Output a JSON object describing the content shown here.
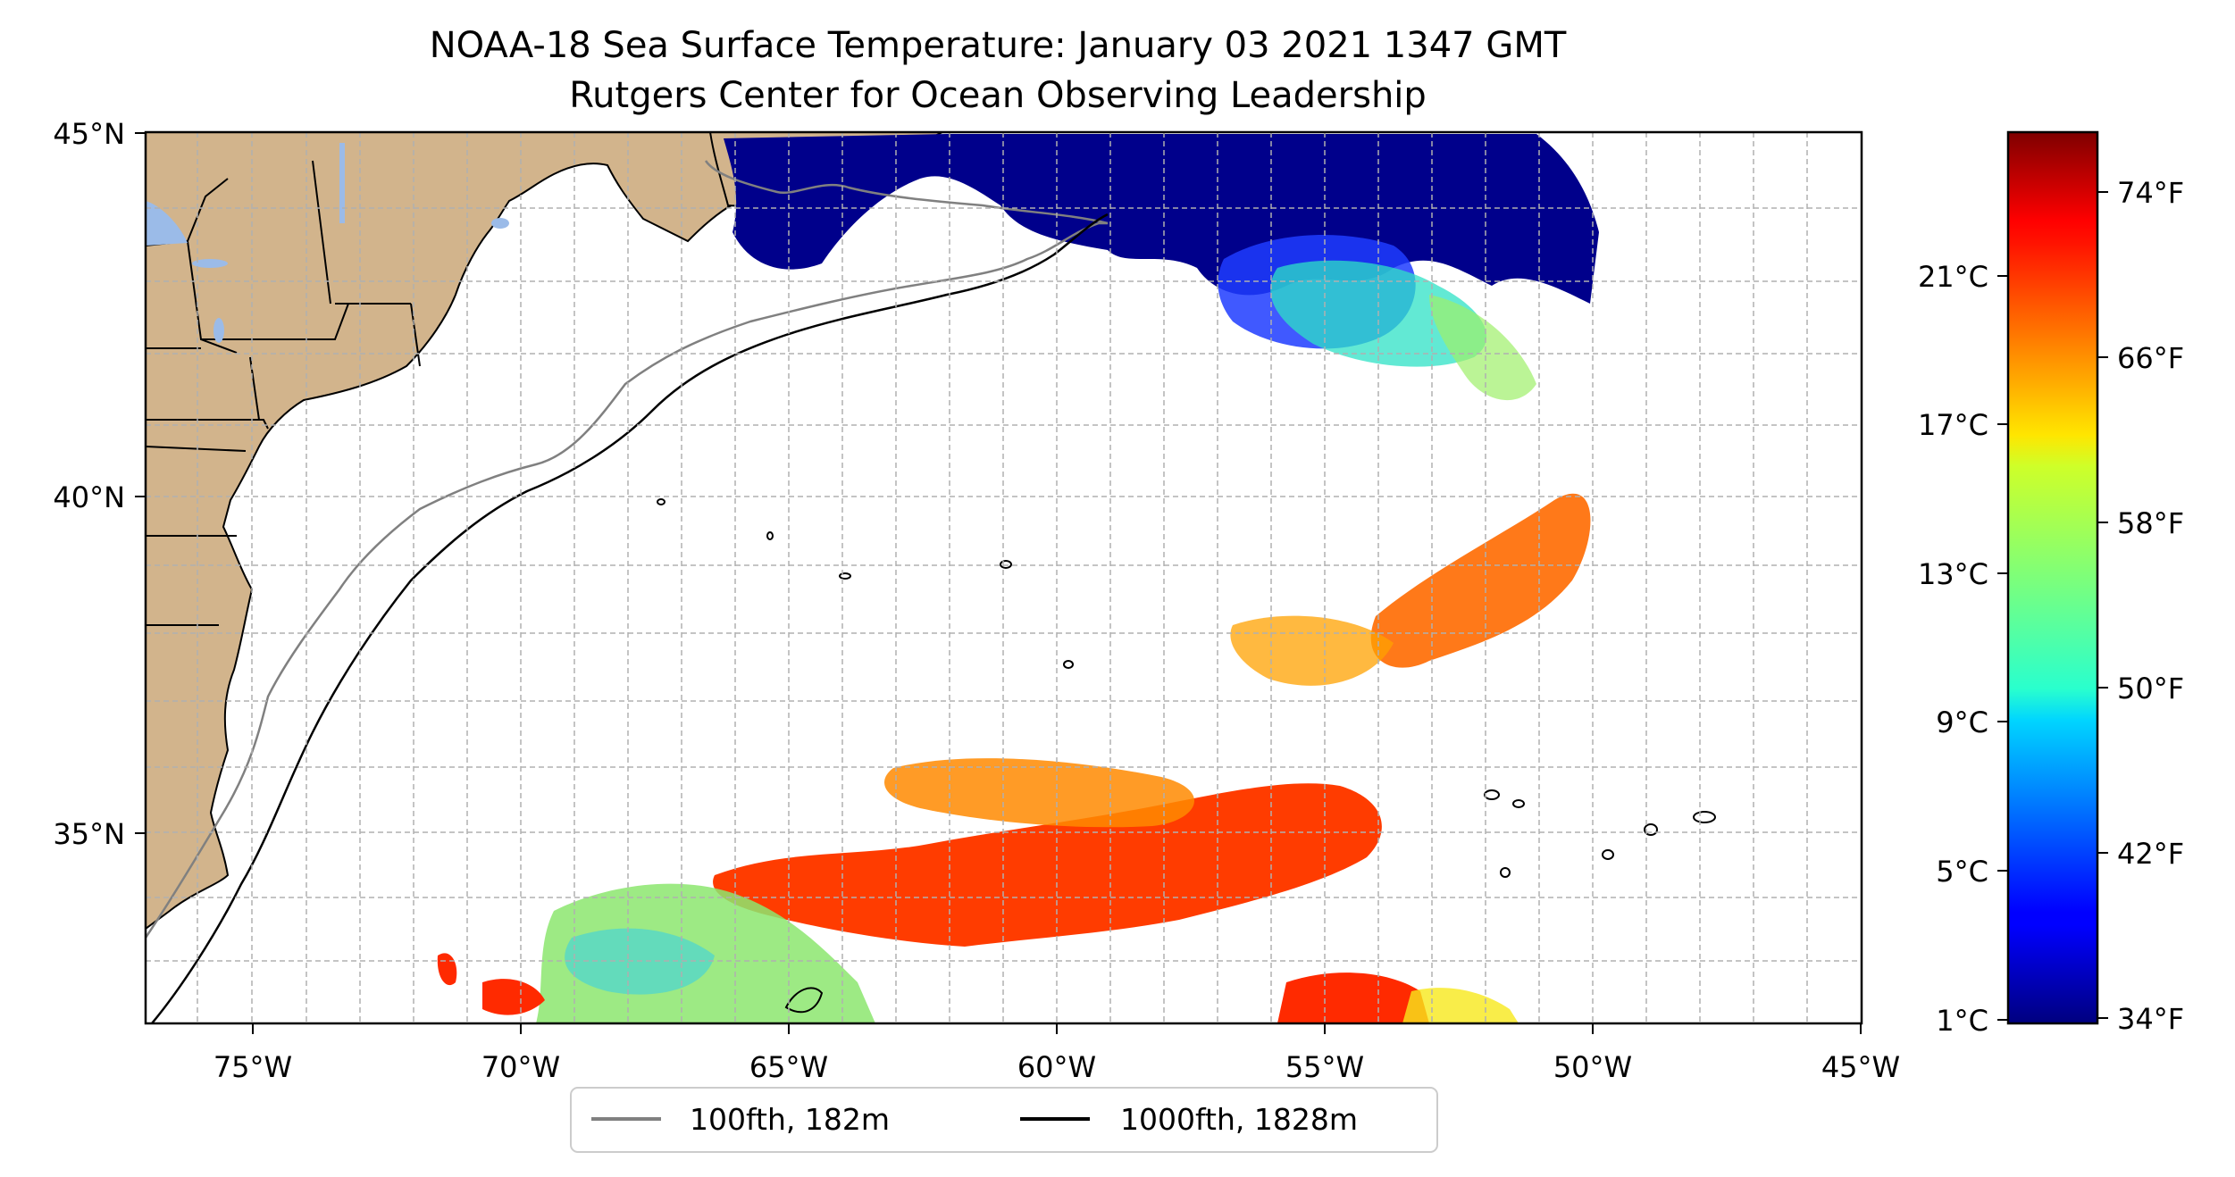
{
  "title": {
    "line1": "NOAA-18 Sea Surface Temperature: January 03 2021 1347 GMT",
    "line2": "Rutgers Center for Ocean Observing Leadership"
  },
  "map": {
    "extent": {
      "lon_min": -77,
      "lon_max": -45,
      "lat_min": 32.5,
      "lat_max": 45
    },
    "projection": "Mercator",
    "gridlines": true,
    "x_ticks": [
      "75°W",
      "70°W",
      "65°W",
      "60°W",
      "55°W",
      "50°W",
      "45°W"
    ],
    "y_ticks": [
      "35°N",
      "40°N",
      "45°N"
    ],
    "land_color": "#d2b48c",
    "lake_color": "#9bbbe8",
    "ocean_color": "#ffffff"
  },
  "colorbar": {
    "colormap": "jet",
    "celsius_ticks": [
      "1°C",
      "5°C",
      "9°C",
      "13°C",
      "17°C",
      "21°C"
    ],
    "fahrenheit_ticks": [
      "34°F",
      "42°F",
      "50°F",
      "58°F",
      "66°F",
      "74°F"
    ]
  },
  "legend": {
    "placement": "bottom-center",
    "items": [
      {
        "label": "100fth, 182m",
        "color": "#808080"
      },
      {
        "label": "1000fth, 1828m",
        "color": "#000000"
      }
    ]
  }
}
